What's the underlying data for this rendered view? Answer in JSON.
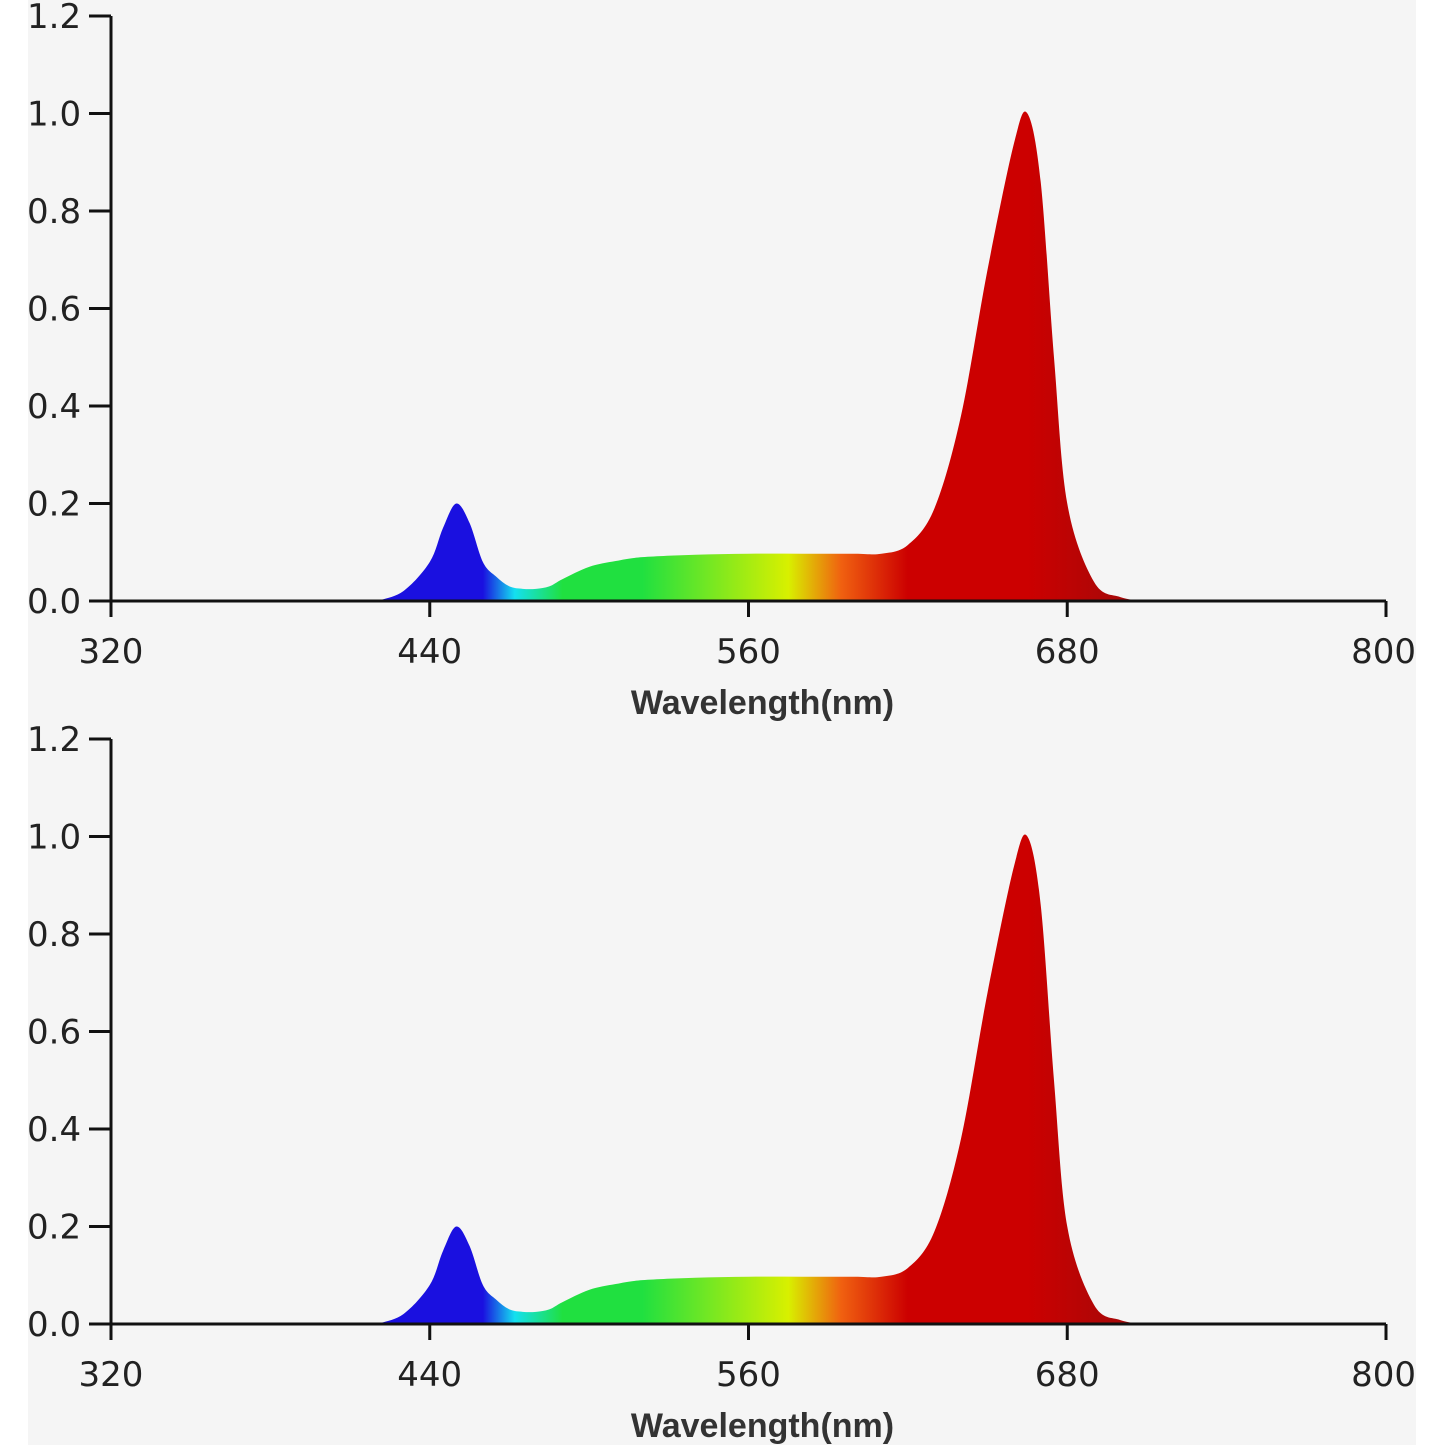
{
  "colors": {
    "axis": "#111111",
    "text": "#222222",
    "background": "#f5f5f5",
    "spectrum": {
      "blue": "#1a10e0",
      "cyan": "#14e0f0",
      "green": "#20e040",
      "yellow": "#d8f000",
      "orange": "#f06010",
      "red": "#cc0000",
      "dark_red": "#a80808"
    }
  },
  "chart_data": [
    {
      "type": "area",
      "title": "",
      "xlabel": "Wavelength(nm)",
      "ylabel": "",
      "xlim": [
        320,
        800
      ],
      "ylim": [
        0,
        1.2
      ],
      "xticks": [
        "320",
        "440",
        "560",
        "680",
        "800"
      ],
      "yticks": [
        "0.0",
        "0.2",
        "0.4",
        "0.6",
        "0.8",
        "1.0",
        "1.2"
      ],
      "grid": false,
      "legend": "none",
      "fill": "spectral-gradient",
      "x": [
        420,
        430,
        440,
        445,
        450,
        455,
        460,
        465,
        470,
        475,
        480,
        485,
        490,
        500,
        510,
        520,
        540,
        560,
        580,
        600,
        610,
        620,
        630,
        640,
        650,
        660,
        665,
        670,
        675,
        680,
        690,
        700,
        710
      ],
      "values": [
        0.0,
        0.02,
        0.08,
        0.15,
        0.2,
        0.16,
        0.08,
        0.05,
        0.03,
        0.025,
        0.025,
        0.03,
        0.045,
        0.07,
        0.082,
        0.09,
        0.095,
        0.097,
        0.097,
        0.097,
        0.097,
        0.115,
        0.19,
        0.38,
        0.68,
        0.94,
        1.0,
        0.86,
        0.5,
        0.2,
        0.04,
        0.008,
        0.0
      ]
    },
    {
      "type": "area",
      "title": "",
      "xlabel": "Wavelength(nm)",
      "ylabel": "",
      "xlim": [
        320,
        800
      ],
      "ylim": [
        0,
        1.2
      ],
      "xticks": [
        "320",
        "440",
        "560",
        "680",
        "800"
      ],
      "yticks": [
        "0.0",
        "0.2",
        "0.4",
        "0.6",
        "0.8",
        "1.0",
        "1.2"
      ],
      "grid": false,
      "legend": "none",
      "fill": "spectral-gradient",
      "x": [
        420,
        430,
        440,
        445,
        450,
        455,
        460,
        465,
        470,
        475,
        480,
        485,
        490,
        500,
        510,
        520,
        540,
        560,
        580,
        600,
        610,
        620,
        630,
        640,
        650,
        660,
        665,
        670,
        675,
        680,
        690,
        700,
        710
      ],
      "values": [
        0.0,
        0.02,
        0.08,
        0.15,
        0.2,
        0.16,
        0.08,
        0.05,
        0.03,
        0.025,
        0.025,
        0.03,
        0.045,
        0.07,
        0.082,
        0.09,
        0.095,
        0.097,
        0.097,
        0.097,
        0.097,
        0.115,
        0.19,
        0.38,
        0.68,
        0.94,
        1.0,
        0.86,
        0.5,
        0.2,
        0.04,
        0.008,
        0.0
      ]
    }
  ]
}
